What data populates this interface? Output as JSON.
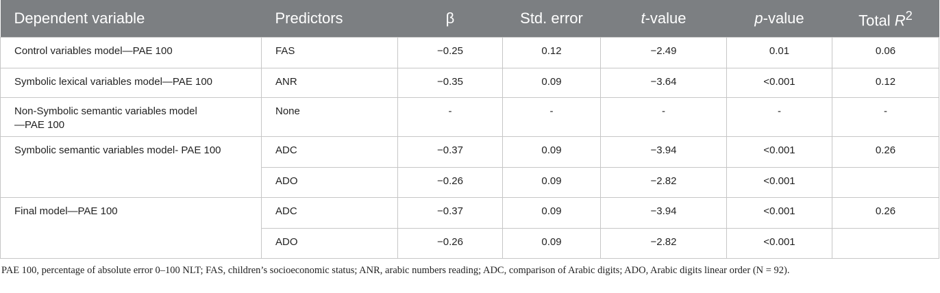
{
  "table": {
    "headers": {
      "dependent": "Dependent variable",
      "predictors": "Predictors",
      "beta": "β",
      "std_error": "Std. error",
      "t_italic": "t",
      "t_rest": "-value",
      "p_italic": "p",
      "p_rest": "-value",
      "r2_prefix": "Total ",
      "r2_italic": "R",
      "r2_sup": "2"
    },
    "rows": [
      {
        "dependent": "Control variables model—PAE 100",
        "predictor": "FAS",
        "beta": "−0.25",
        "se": "0.12",
        "t": "−2.49",
        "p": "0.01",
        "r2": "0.06"
      },
      {
        "dependent": "Symbolic lexical variables model—PAE 100",
        "predictor": "ANR",
        "beta": "−0.35",
        "se": "0.09",
        "t": "−3.64",
        "p": "<0.001",
        "r2": "0.12"
      },
      {
        "dependent": "Non-Symbolic semantic variables model—PAE 100",
        "predictor": "None",
        "beta": "-",
        "se": "-",
        "t": "-",
        "p": "-",
        "r2": "-"
      },
      {
        "dependent": "Symbolic semantic variables model- PAE 100",
        "predictor": "ADC",
        "beta": "−0.37",
        "se": "0.09",
        "t": "−3.94",
        "p": "<0.001",
        "r2": "0.26"
      },
      {
        "predictor": "ADO",
        "beta": "−0.26",
        "se": "0.09",
        "t": "−2.82",
        "p": "<0.001",
        "r2": ""
      },
      {
        "dependent": "Final model—PAE 100",
        "predictor": "ADC",
        "beta": "−0.37",
        "se": "0.09",
        "t": "−3.94",
        "p": "<0.001",
        "r2": "0.26"
      },
      {
        "predictor": "ADO",
        "beta": "−0.26",
        "se": "0.09",
        "t": "−2.82",
        "p": "<0.001",
        "r2": ""
      }
    ]
  },
  "footnote": "PAE 100, percentage of absolute error 0–100 NLT; FAS, children’s socioeconomic status; ANR, arabic numbers reading; ADC, comparison of Arabic digits; ADO, Arabic digits linear order (N = 92)."
}
